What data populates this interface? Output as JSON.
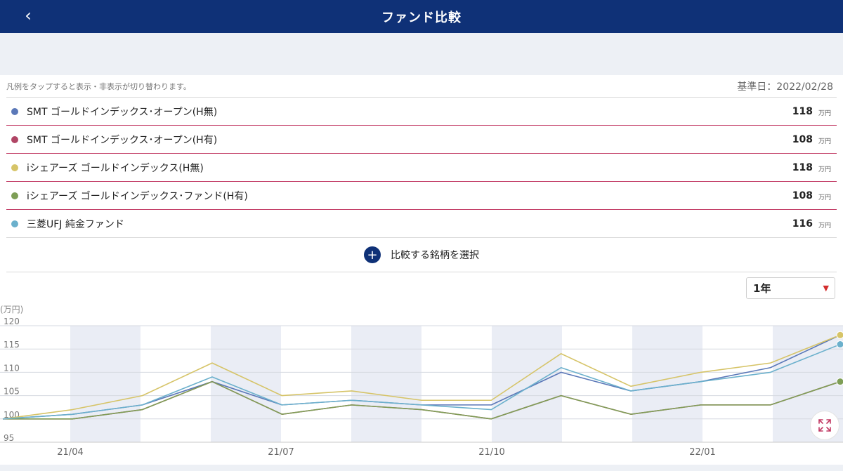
{
  "header": {
    "title": "ファンド比較",
    "back_icon": "chevron-left-icon"
  },
  "hint": "凡例をタップすると表示・非表示が切り替わります。",
  "base_date": "基準日：2022/02/28",
  "legend": [
    {
      "name": "SMT ゴールドインデックス･オープン(H無)",
      "value": "118",
      "unit": "万円",
      "color": "#5b78b8"
    },
    {
      "name": "SMT ゴールドインデックス･オープン(H有)",
      "value": "108",
      "unit": "万円",
      "color": "#b04565"
    },
    {
      "name": "iシェアーズ ゴールドインデックス(H無)",
      "value": "118",
      "unit": "万円",
      "color": "#d6c468"
    },
    {
      "name": "iシェアーズ ゴールドインデックス･ファンド(H有)",
      "value": "108",
      "unit": "万円",
      "color": "#7e9e56"
    },
    {
      "name": "三菱UFJ 純金ファンド",
      "value": "116",
      "unit": "万円",
      "color": "#6bb0cc"
    }
  ],
  "add_button": {
    "icon": "plus-icon",
    "label": "比較する銘柄を選択"
  },
  "period_select": {
    "value": "1年",
    "icon": "caret-down-icon"
  },
  "expand_icon": "expand-icon",
  "chart_data": {
    "type": "line",
    "ylabel": "(万円)",
    "ylim": [
      95,
      120
    ],
    "yticks": [
      95,
      100,
      105,
      110,
      115,
      120
    ],
    "xticks": [
      "21/04",
      "21/07",
      "21/10",
      "22/01"
    ],
    "x": [
      "21/03",
      "21/04",
      "21/05",
      "21/06",
      "21/07",
      "21/08",
      "21/09",
      "21/10",
      "21/11",
      "21/12",
      "22/01",
      "22/02",
      "22/02末"
    ],
    "series": [
      {
        "name": "SMT ゴールドインデックス･オープン(H無)",
        "color": "#5b78b8",
        "values": [
          100,
          101,
          103,
          108,
          103,
          104,
          103,
          103,
          110,
          106,
          108,
          111,
          118
        ]
      },
      {
        "name": "SMT ゴールドインデックス･オープン(H有)",
        "color": "#b04565",
        "values": [
          100,
          100,
          102,
          108,
          101,
          103,
          102,
          100,
          105,
          101,
          103,
          103,
          108
        ]
      },
      {
        "name": "iシェアーズ ゴールドインデックス(H無)",
        "color": "#d6c468",
        "values": [
          100,
          102,
          105,
          112,
          105,
          106,
          104,
          104,
          114,
          107,
          110,
          112,
          118
        ]
      },
      {
        "name": "iシェアーズ ゴールドインデックス･ファンド(H有)",
        "color": "#7e9e56",
        "values": [
          100,
          100,
          102,
          108,
          101,
          103,
          102,
          100,
          105,
          101,
          103,
          103,
          108
        ]
      },
      {
        "name": "三菱UFJ 純金ファンド",
        "color": "#6bb0cc",
        "values": [
          100,
          101,
          103,
          109,
          103,
          104,
          103,
          102,
          111,
          106,
          108,
          110,
          116
        ]
      }
    ]
  }
}
